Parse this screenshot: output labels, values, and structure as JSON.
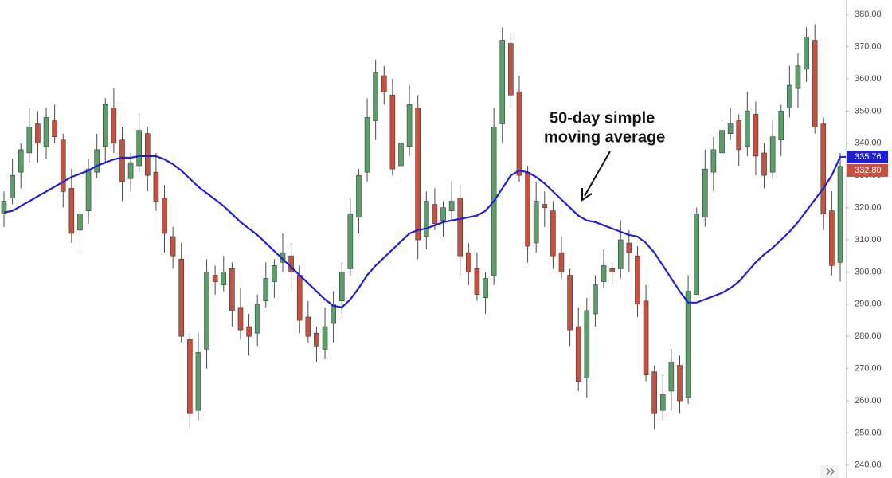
{
  "chart_data": {
    "type": "candlestick",
    "annotation": [
      "50-day simple",
      "moving average"
    ],
    "ylim": [
      236,
      384.5
    ],
    "yticks": [
      {
        "value": 240,
        "label": "240.00"
      },
      {
        "value": 250,
        "label": "250.00"
      },
      {
        "value": 260,
        "label": "260.00"
      },
      {
        "value": 270,
        "label": "270.00"
      },
      {
        "value": 280,
        "label": "280.00"
      },
      {
        "value": 290,
        "label": "290.00"
      },
      {
        "value": 300,
        "label": "300.00"
      },
      {
        "value": 310,
        "label": "310.00"
      },
      {
        "value": 320,
        "label": "320.00"
      },
      {
        "value": 330,
        "label": "330.00"
      },
      {
        "value": 340,
        "label": "340.00"
      },
      {
        "value": 350,
        "label": "350.00"
      },
      {
        "value": 360,
        "label": "360.00"
      },
      {
        "value": 370,
        "label": "370.00"
      },
      {
        "value": 380,
        "label": "380.00"
      }
    ],
    "grid": false,
    "candles": {
      "up_color": "#5c9e6b",
      "down_color": "#c8503e",
      "open": [
        318,
        323,
        331,
        337,
        346,
        339,
        347,
        341,
        326,
        313,
        319,
        331,
        339,
        351,
        341,
        329,
        333,
        343,
        331,
        323,
        311,
        304,
        279,
        257,
        276,
        299,
        296,
        301,
        289,
        283,
        281,
        291,
        297,
        303,
        305,
        299,
        286,
        281,
        276,
        284,
        291,
        301,
        317,
        331,
        347,
        361,
        355,
        333,
        339,
        351,
        311,
        321,
        316,
        319,
        323,
        306,
        301,
        292,
        299,
        346,
        371,
        356,
        331,
        309,
        321,
        319,
        306,
        299,
        283,
        267,
        287,
        297,
        301,
        301,
        309,
        305,
        291,
        269,
        257,
        263,
        271,
        261,
        293,
        317,
        331,
        337,
        343,
        347,
        339,
        349,
        337,
        331,
        341,
        351,
        357,
        363,
        372,
        346,
        319,
        303
      ],
      "high": [
        325,
        335,
        340,
        351,
        350,
        351,
        352,
        343,
        332,
        322,
        335,
        343,
        354,
        357,
        345,
        337,
        349,
        345,
        337,
        327,
        314,
        309,
        281,
        281,
        304,
        302,
        305,
        303,
        295,
        287,
        293,
        303,
        304,
        312,
        309,
        302,
        291,
        283,
        289,
        294,
        303,
        323,
        332,
        354,
        366,
        364,
        360,
        342,
        358,
        355,
        325,
        326,
        322,
        328,
        327,
        309,
        306,
        300,
        351,
        376,
        374,
        361,
        333,
        328,
        325,
        322,
        311,
        301,
        289,
        292,
        299,
        307,
        303,
        316,
        313,
        308,
        296,
        271,
        268,
        276,
        274,
        299,
        320,
        338,
        342,
        347,
        351,
        349,
        356,
        353,
        340,
        347,
        352,
        364,
        368,
        376,
        377,
        348,
        325,
        337
      ],
      "low": [
        314,
        321,
        326,
        334,
        334,
        335,
        340,
        320,
        309,
        307,
        315,
        329,
        334,
        337,
        322,
        325,
        331,
        325,
        319,
        306,
        301,
        278,
        251,
        254,
        270,
        293,
        294,
        283,
        279,
        274,
        277,
        289,
        292,
        300,
        294,
        281,
        278,
        272,
        273,
        278,
        287,
        299,
        312,
        328,
        341,
        352,
        330,
        328,
        336,
        304,
        307,
        313,
        311,
        316,
        299,
        296,
        291,
        287,
        296,
        340,
        351,
        328,
        303,
        306,
        314,
        301,
        298,
        277,
        263,
        261,
        283,
        295,
        296,
        298,
        300,
        286,
        266,
        251,
        254,
        257,
        256,
        259,
        313,
        314,
        325,
        333,
        341,
        333,
        336,
        330,
        326,
        329,
        336,
        348,
        351,
        359,
        343,
        313,
        299,
        297
      ],
      "close": [
        322,
        330,
        338,
        345,
        340,
        348,
        342,
        325,
        312,
        318,
        332,
        338,
        352,
        340,
        328,
        334,
        344,
        330,
        322,
        312,
        305,
        280,
        256,
        275,
        300,
        297,
        300,
        288,
        282,
        280,
        290,
        298,
        302,
        306,
        300,
        285,
        280,
        277,
        283,
        290,
        300,
        318,
        330,
        348,
        362,
        356,
        332,
        340,
        352,
        310,
        322,
        315,
        320,
        322,
        305,
        300,
        293,
        298,
        345,
        372,
        355,
        330,
        308,
        322,
        320,
        305,
        300,
        282,
        266,
        288,
        296,
        302,
        300,
        310,
        306,
        290,
        268,
        256,
        262,
        272,
        260,
        294,
        318,
        332,
        338,
        344,
        346,
        338,
        350,
        336,
        330,
        342,
        350,
        358,
        364,
        373,
        345,
        318,
        302,
        332.8
      ],
      "last_close_label": "332.80"
    },
    "moving_average": {
      "color": "#1f1fd6",
      "values": [
        318.5,
        319,
        320.5,
        322,
        323.5,
        325,
        326.5,
        328,
        329.5,
        330.5,
        331.5,
        333,
        334,
        335,
        335.5,
        335.5,
        336,
        336,
        336,
        335,
        333.5,
        331.5,
        329,
        326.5,
        324.5,
        322.5,
        320.5,
        318,
        315.5,
        313.5,
        311.5,
        309,
        306.5,
        304,
        301.5,
        299,
        296.5,
        294,
        291.5,
        289.5,
        289,
        291.5,
        295,
        299,
        302,
        304.5,
        307,
        309.5,
        312,
        313,
        313.5,
        314.5,
        315.5,
        316,
        316.5,
        317,
        317.5,
        319,
        322,
        326,
        330,
        331.5,
        331,
        329.5,
        327.5,
        325,
        322.5,
        320,
        317.5,
        316,
        315.5,
        314.5,
        313.5,
        312.5,
        311.5,
        311,
        309,
        306,
        302,
        298,
        294,
        290.5,
        290.5,
        291.5,
        292.5,
        293.5,
        295,
        297,
        300,
        303,
        305.5,
        307.5,
        310,
        312.5,
        315.5,
        319,
        322.5,
        326,
        330,
        335.76
      ],
      "last_label": "335.76"
    }
  }
}
